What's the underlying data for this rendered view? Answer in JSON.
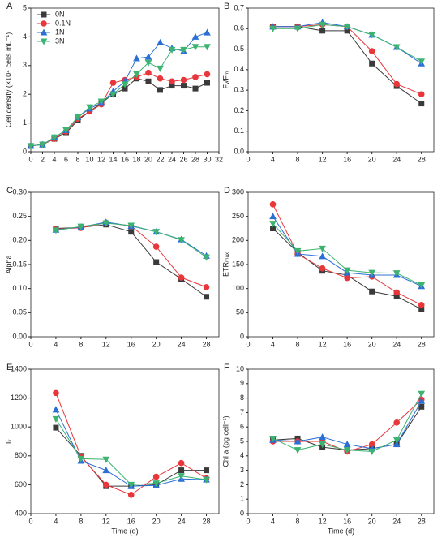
{
  "chart_data": [
    {
      "type": "line",
      "label": "A",
      "ylabel": "Cell density (×10⁴ cells mL⁻¹)",
      "x": [
        0,
        2,
        4,
        6,
        8,
        10,
        12,
        14,
        16,
        18,
        20,
        22,
        24,
        26,
        28,
        30
      ],
      "xlim": [
        0,
        32
      ],
      "xticks": [
        0,
        2,
        4,
        6,
        8,
        10,
        12,
        14,
        16,
        18,
        20,
        22,
        24,
        26,
        28,
        30,
        32
      ],
      "ylim": [
        0,
        5
      ],
      "yticks": [
        0,
        1,
        2,
        3,
        4,
        5
      ],
      "legend": "upper left",
      "series": [
        {
          "name": "0N",
          "color": "#3a3a3a",
          "marker": "square",
          "values": [
            0.2,
            0.25,
            0.45,
            0.65,
            1.1,
            1.4,
            1.7,
            2.0,
            2.2,
            2.55,
            2.45,
            2.15,
            2.3,
            2.3,
            2.2,
            2.4
          ]
        },
        {
          "name": "0.1N",
          "color": "#e8363a",
          "marker": "circle",
          "values": [
            0.2,
            0.25,
            0.45,
            0.7,
            1.15,
            1.4,
            1.65,
            2.4,
            2.5,
            2.6,
            2.75,
            2.55,
            2.45,
            2.5,
            2.6,
            2.7
          ]
        },
        {
          "name": "1N",
          "color": "#2b6fd6",
          "marker": "triangle-up",
          "values": [
            0.2,
            0.25,
            0.5,
            0.75,
            1.2,
            1.5,
            1.7,
            2.1,
            2.45,
            3.25,
            3.3,
            3.8,
            3.6,
            3.5,
            4.0,
            4.15
          ]
        },
        {
          "name": "3N",
          "color": "#3cb371",
          "marker": "triangle-down",
          "values": [
            0.2,
            0.25,
            0.5,
            0.75,
            1.2,
            1.55,
            1.75,
            2.0,
            2.35,
            2.7,
            3.1,
            2.9,
            3.55,
            3.55,
            3.65,
            3.65
          ]
        }
      ]
    },
    {
      "type": "line",
      "label": "B",
      "ylabel": "Fᵥ/Fₘ",
      "x": [
        4,
        8,
        12,
        16,
        20,
        24,
        28
      ],
      "xlim": [
        0,
        30
      ],
      "xticks": [
        0,
        4,
        8,
        12,
        16,
        20,
        24,
        28
      ],
      "ylim": [
        0,
        0.7
      ],
      "yticks": [
        {
          "value": 0,
          "label": "0.0"
        },
        0.1,
        0.2,
        0.3,
        0.4,
        0.5,
        0.6,
        0.7
      ],
      "series": [
        {
          "color": "#3a3a3a",
          "marker": "square",
          "values": [
            0.61,
            0.61,
            0.59,
            0.59,
            0.43,
            0.32,
            0.235
          ]
        },
        {
          "color": "#e8363a",
          "marker": "circle",
          "values": [
            0.61,
            0.61,
            0.62,
            0.61,
            0.49,
            0.33,
            0.28
          ]
        },
        {
          "color": "#2b6fd6",
          "marker": "triangle-up",
          "values": [
            0.61,
            0.61,
            0.63,
            0.61,
            0.57,
            0.51,
            0.43
          ]
        },
        {
          "color": "#3cb371",
          "marker": "triangle-down",
          "values": [
            0.6,
            0.6,
            0.62,
            0.61,
            0.57,
            0.51,
            0.44
          ]
        }
      ]
    },
    {
      "type": "line",
      "label": "C",
      "ylabel": "Alpha",
      "x": [
        4,
        8,
        12,
        16,
        20,
        24,
        28
      ],
      "xlim": [
        0,
        30
      ],
      "xticks": [
        0,
        4,
        8,
        12,
        16,
        20,
        24,
        28
      ],
      "ylim": [
        0,
        0.3
      ],
      "yticks": [
        {
          "value": 0,
          "label": "0.00"
        },
        {
          "value": 0.05,
          "label": "0.05"
        },
        {
          "value": 0.1,
          "label": "0.10"
        },
        {
          "value": 0.15,
          "label": "0.15"
        },
        {
          "value": 0.2,
          "label": "0.20"
        },
        {
          "value": 0.25,
          "label": "0.25"
        },
        {
          "value": 0.3,
          "label": "0.30"
        }
      ],
      "series": [
        {
          "color": "#3a3a3a",
          "marker": "square",
          "values": [
            0.225,
            0.227,
            0.233,
            0.218,
            0.155,
            0.12,
            0.083
          ]
        },
        {
          "color": "#e8363a",
          "marker": "circle",
          "values": [
            0.224,
            0.226,
            0.237,
            0.23,
            0.187,
            0.123,
            0.103
          ]
        },
        {
          "color": "#2b6fd6",
          "marker": "triangle-up",
          "values": [
            0.222,
            0.228,
            0.238,
            0.23,
            0.218,
            0.202,
            0.168
          ]
        },
        {
          "color": "#3cb371",
          "marker": "triangle-down",
          "values": [
            0.221,
            0.229,
            0.236,
            0.231,
            0.218,
            0.201,
            0.165
          ]
        }
      ]
    },
    {
      "type": "line",
      "label": "D",
      "ylabel": "ETRₘₐₓ",
      "x": [
        4,
        8,
        12,
        16,
        20,
        24,
        28
      ],
      "xlim": [
        0,
        30
      ],
      "xticks": [
        0,
        4,
        8,
        12,
        16,
        20,
        24,
        28
      ],
      "ylim": [
        0,
        300
      ],
      "yticks": [
        0,
        50,
        100,
        150,
        200,
        250,
        300
      ],
      "series": [
        {
          "color": "#3a3a3a",
          "marker": "square",
          "values": [
            225,
            175,
            137,
            128,
            94,
            84,
            57
          ]
        },
        {
          "color": "#e8363a",
          "marker": "circle",
          "values": [
            275,
            172,
            142,
            122,
            125,
            92,
            66
          ]
        },
        {
          "color": "#2b6fd6",
          "marker": "triangle-up",
          "values": [
            250,
            172,
            167,
            133,
            128,
            128,
            105
          ]
        },
        {
          "color": "#3cb371",
          "marker": "triangle-down",
          "values": [
            235,
            178,
            183,
            138,
            133,
            132,
            107
          ]
        }
      ]
    },
    {
      "type": "line",
      "label": "E",
      "ylabel": "Iₖ",
      "xlabel": "Time (d)",
      "x": [
        4,
        8,
        12,
        16,
        20,
        24,
        28
      ],
      "xlim": [
        0,
        30
      ],
      "xticks": [
        0,
        4,
        8,
        12,
        16,
        20,
        24,
        28
      ],
      "ylim": [
        400,
        1400
      ],
      "yticks": [
        400,
        600,
        800,
        1000,
        1200,
        1400
      ],
      "series": [
        {
          "color": "#3a3a3a",
          "marker": "square",
          "values": [
            995,
            800,
            590,
            590,
            600,
            700,
            700
          ]
        },
        {
          "color": "#e8363a",
          "marker": "circle",
          "values": [
            1235,
            795,
            600,
            530,
            655,
            750,
            645
          ]
        },
        {
          "color": "#2b6fd6",
          "marker": "triangle-up",
          "values": [
            1120,
            765,
            700,
            590,
            595,
            640,
            635
          ]
        },
        {
          "color": "#3cb371",
          "marker": "triangle-down",
          "values": [
            1055,
            780,
            775,
            600,
            610,
            660,
            635
          ]
        }
      ]
    },
    {
      "type": "line",
      "label": "F",
      "ylabel": "Chl a (pg cell⁻¹)",
      "xlabel": "Time (d)",
      "x": [
        4,
        8,
        12,
        16,
        20,
        24,
        28
      ],
      "xlim": [
        0,
        30
      ],
      "xticks": [
        0,
        4,
        8,
        12,
        16,
        20,
        24,
        28
      ],
      "ylim": [
        0,
        10
      ],
      "yticks": [
        0,
        1,
        2,
        3,
        4,
        5,
        6,
        7,
        8,
        9,
        10
      ],
      "series": [
        {
          "color": "#3a3a3a",
          "marker": "square",
          "values": [
            5.1,
            5.2,
            4.6,
            4.4,
            4.5,
            4.8,
            7.4
          ]
        },
        {
          "color": "#e8363a",
          "marker": "circle",
          "values": [
            5.0,
            5.0,
            5.0,
            4.3,
            4.8,
            6.3,
            7.9
          ]
        },
        {
          "color": "#2b6fd6",
          "marker": "triangle-up",
          "values": [
            5.1,
            5.0,
            5.3,
            4.8,
            4.5,
            4.8,
            7.8
          ]
        },
        {
          "color": "#3cb371",
          "marker": "triangle-down",
          "values": [
            5.2,
            4.4,
            4.8,
            4.4,
            4.3,
            5.1,
            8.3
          ]
        }
      ]
    }
  ]
}
